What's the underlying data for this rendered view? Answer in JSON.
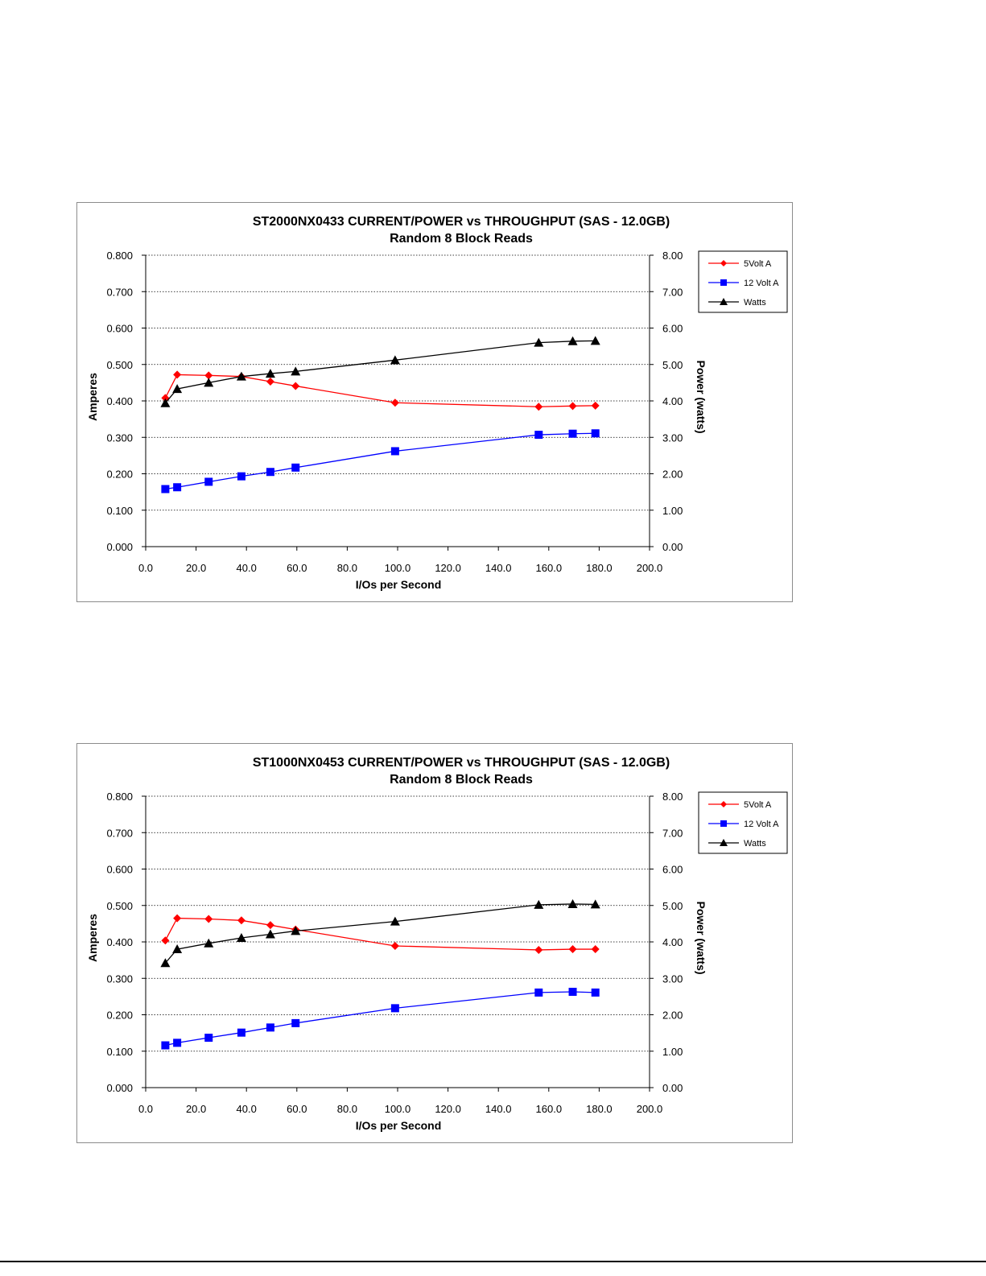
{
  "charts": [
    {
      "title": "ST2000NX0433  CURRENT/POWER vs THROUGHPUT (SAS - 12.0GB)",
      "subtitle": "Random 8 Block Reads",
      "xlabel": "I/Os per Second",
      "ylabel_left": "Amperes",
      "ylabel_right": "Power (watts)",
      "legend": [
        "5Volt A",
        "12 Volt A",
        "Watts"
      ]
    },
    {
      "title": "ST1000NX0453  CURRENT/POWER vs THROUGHPUT (SAS - 12.0GB)",
      "subtitle": "Random 8 Block Reads",
      "xlabel": "I/Os per Second",
      "ylabel_left": "Amperes",
      "ylabel_right": "Power (watts)",
      "legend": [
        "5Volt A",
        "12 Volt A",
        "Watts"
      ]
    }
  ],
  "chart_data": [
    {
      "type": "line",
      "title": "ST2000NX0433  CURRENT/POWER vs THROUGHPUT (SAS - 12.0GB)",
      "subtitle": "Random 8 Block Reads",
      "xlabel": "I/Os per Second",
      "ylabel": "Amperes",
      "y2label": "Power (watts)",
      "xlim": [
        0,
        200
      ],
      "ylim": [
        0,
        0.8
      ],
      "y2lim": [
        0,
        8
      ],
      "x_ticks": [
        "0.0",
        "20.0",
        "40.0",
        "60.0",
        "80.0",
        "100.0",
        "120.0",
        "140.0",
        "160.0",
        "180.0",
        "200.0"
      ],
      "y_ticks": [
        "0.000",
        "0.100",
        "0.200",
        "0.300",
        "0.400",
        "0.500",
        "0.600",
        "0.700",
        "0.800"
      ],
      "y2_ticks": [
        "0.00",
        "1.00",
        "2.00",
        "3.00",
        "4.00",
        "5.00",
        "6.00",
        "7.00",
        "8.00"
      ],
      "grid": "horizontal dotted",
      "legend_position": "right",
      "series": [
        {
          "name": "5Volt A",
          "axis": "left",
          "color": "#ff0000",
          "marker": "diamond",
          "x": [
            7.8,
            12.5,
            25.0,
            38.0,
            49.5,
            59.5,
            99.0,
            156.0,
            169.5,
            178.5
          ],
          "y": [
            0.408,
            0.472,
            0.47,
            0.467,
            0.453,
            0.441,
            0.395,
            0.384,
            0.386,
            0.387
          ]
        },
        {
          "name": "12 Volt A",
          "axis": "left",
          "color": "#0000ff",
          "marker": "square",
          "x": [
            7.8,
            12.5,
            25.0,
            38.0,
            49.5,
            59.5,
            99.0,
            156.0,
            169.5,
            178.5
          ],
          "y": [
            0.158,
            0.163,
            0.178,
            0.193,
            0.205,
            0.217,
            0.262,
            0.307,
            0.31,
            0.311
          ]
        },
        {
          "name": "Watts",
          "axis": "right",
          "color": "#000000",
          "marker": "triangle",
          "x": [
            7.8,
            12.5,
            25.0,
            38.0,
            49.5,
            59.5,
            99.0,
            156.0,
            169.5,
            178.5
          ],
          "y": [
            3.94,
            4.33,
            4.5,
            4.67,
            4.75,
            4.81,
            5.12,
            5.6,
            5.64,
            5.65
          ]
        }
      ]
    },
    {
      "type": "line",
      "title": "ST1000NX0453  CURRENT/POWER vs THROUGHPUT (SAS - 12.0GB)",
      "subtitle": "Random 8 Block Reads",
      "xlabel": "I/Os per Second",
      "ylabel": "Amperes",
      "y2label": "Power (watts)",
      "xlim": [
        0,
        200
      ],
      "ylim": [
        0,
        0.8
      ],
      "y2lim": [
        0,
        8
      ],
      "x_ticks": [
        "0.0",
        "20.0",
        "40.0",
        "60.0",
        "80.0",
        "100.0",
        "120.0",
        "140.0",
        "160.0",
        "180.0",
        "200.0"
      ],
      "y_ticks": [
        "0.000",
        "0.100",
        "0.200",
        "0.300",
        "0.400",
        "0.500",
        "0.600",
        "0.700",
        "0.800"
      ],
      "y2_ticks": [
        "0.00",
        "1.00",
        "2.00",
        "3.00",
        "4.00",
        "5.00",
        "6.00",
        "7.00",
        "8.00"
      ],
      "grid": "horizontal dotted",
      "legend_position": "right",
      "series": [
        {
          "name": "5Volt A",
          "axis": "left",
          "color": "#ff0000",
          "marker": "diamond",
          "x": [
            7.8,
            12.5,
            25.0,
            38.0,
            49.5,
            59.5,
            99.0,
            156.0,
            169.5,
            178.5
          ],
          "y": [
            0.404,
            0.465,
            0.463,
            0.459,
            0.446,
            0.434,
            0.389,
            0.378,
            0.38,
            0.38
          ]
        },
        {
          "name": "12 Volt A",
          "axis": "left",
          "color": "#0000ff",
          "marker": "square",
          "x": [
            7.8,
            12.5,
            25.0,
            38.0,
            49.5,
            59.5,
            99.0,
            156.0,
            169.5,
            178.5
          ],
          "y": [
            0.116,
            0.123,
            0.137,
            0.151,
            0.165,
            0.177,
            0.218,
            0.261,
            0.263,
            0.261
          ]
        },
        {
          "name": "Watts",
          "axis": "right",
          "color": "#000000",
          "marker": "triangle",
          "x": [
            7.8,
            12.5,
            25.0,
            38.0,
            49.5,
            59.5,
            99.0,
            156.0,
            169.5,
            178.5
          ],
          "y": [
            3.42,
            3.8,
            3.96,
            4.11,
            4.21,
            4.3,
            4.56,
            5.02,
            5.04,
            5.03
          ]
        }
      ]
    }
  ]
}
